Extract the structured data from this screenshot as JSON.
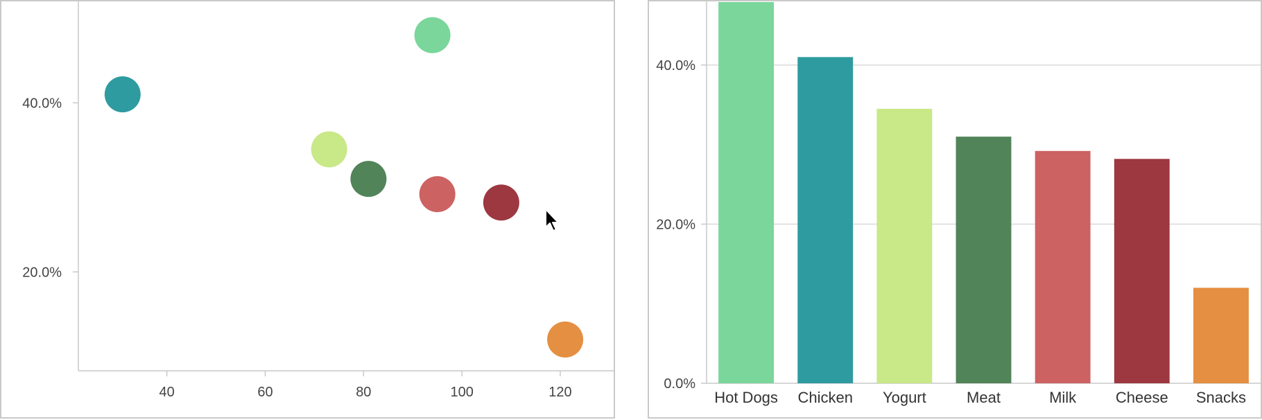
{
  "chart_data": [
    {
      "type": "scatter",
      "xlim": [
        22,
        131
      ],
      "ylim": [
        8.3,
        52
      ],
      "x_ticks": [
        40,
        60,
        80,
        100,
        120
      ],
      "x_tick_labels": [
        "40",
        "60",
        "80",
        "100",
        "120"
      ],
      "y_ticks": [
        20,
        40
      ],
      "y_tick_labels": [
        "20.0%",
        "40.0%"
      ],
      "grid": false,
      "points": [
        {
          "category": "Chicken",
          "x": 31,
          "y": 41.0,
          "color": "#2e9ba0"
        },
        {
          "category": "Hot Dogs",
          "x": 94,
          "y": 48.0,
          "color": "#7ad69a"
        },
        {
          "category": "Yogurt",
          "x": 73,
          "y": 34.5,
          "color": "#c9e888"
        },
        {
          "category": "Meat",
          "x": 81,
          "y": 31.0,
          "color": "#528459"
        },
        {
          "category": "Milk",
          "x": 95,
          "y": 29.2,
          "color": "#cd6262"
        },
        {
          "category": "Cheese",
          "x": 108,
          "y": 28.2,
          "color": "#9d3740"
        },
        {
          "category": "Snacks",
          "x": 121,
          "y": 12.0,
          "color": "#e58f42"
        }
      ]
    },
    {
      "type": "bar",
      "categories": [
        "Hot Dogs",
        "Chicken",
        "Yogurt",
        "Meat",
        "Milk",
        "Cheese",
        "Snacks"
      ],
      "values": [
        48.0,
        41.0,
        34.5,
        31.0,
        29.2,
        28.2,
        12.0
      ],
      "colors": [
        "#7ad69a",
        "#2e9ba0",
        "#c9e888",
        "#528459",
        "#cd6262",
        "#9d3740",
        "#e58f42"
      ],
      "ylim": [
        0,
        48
      ],
      "y_ticks": [
        0,
        20,
        40
      ],
      "y_tick_labels": [
        "0.0%",
        "20.0%",
        "40.0%"
      ],
      "grid": true
    }
  ],
  "colors": {
    "axis": "#c9c9c9",
    "grid": "#d9d9d9",
    "panel_border": "#c9c9c9"
  },
  "cursor": {
    "icon": "mouse-pointer-icon"
  }
}
